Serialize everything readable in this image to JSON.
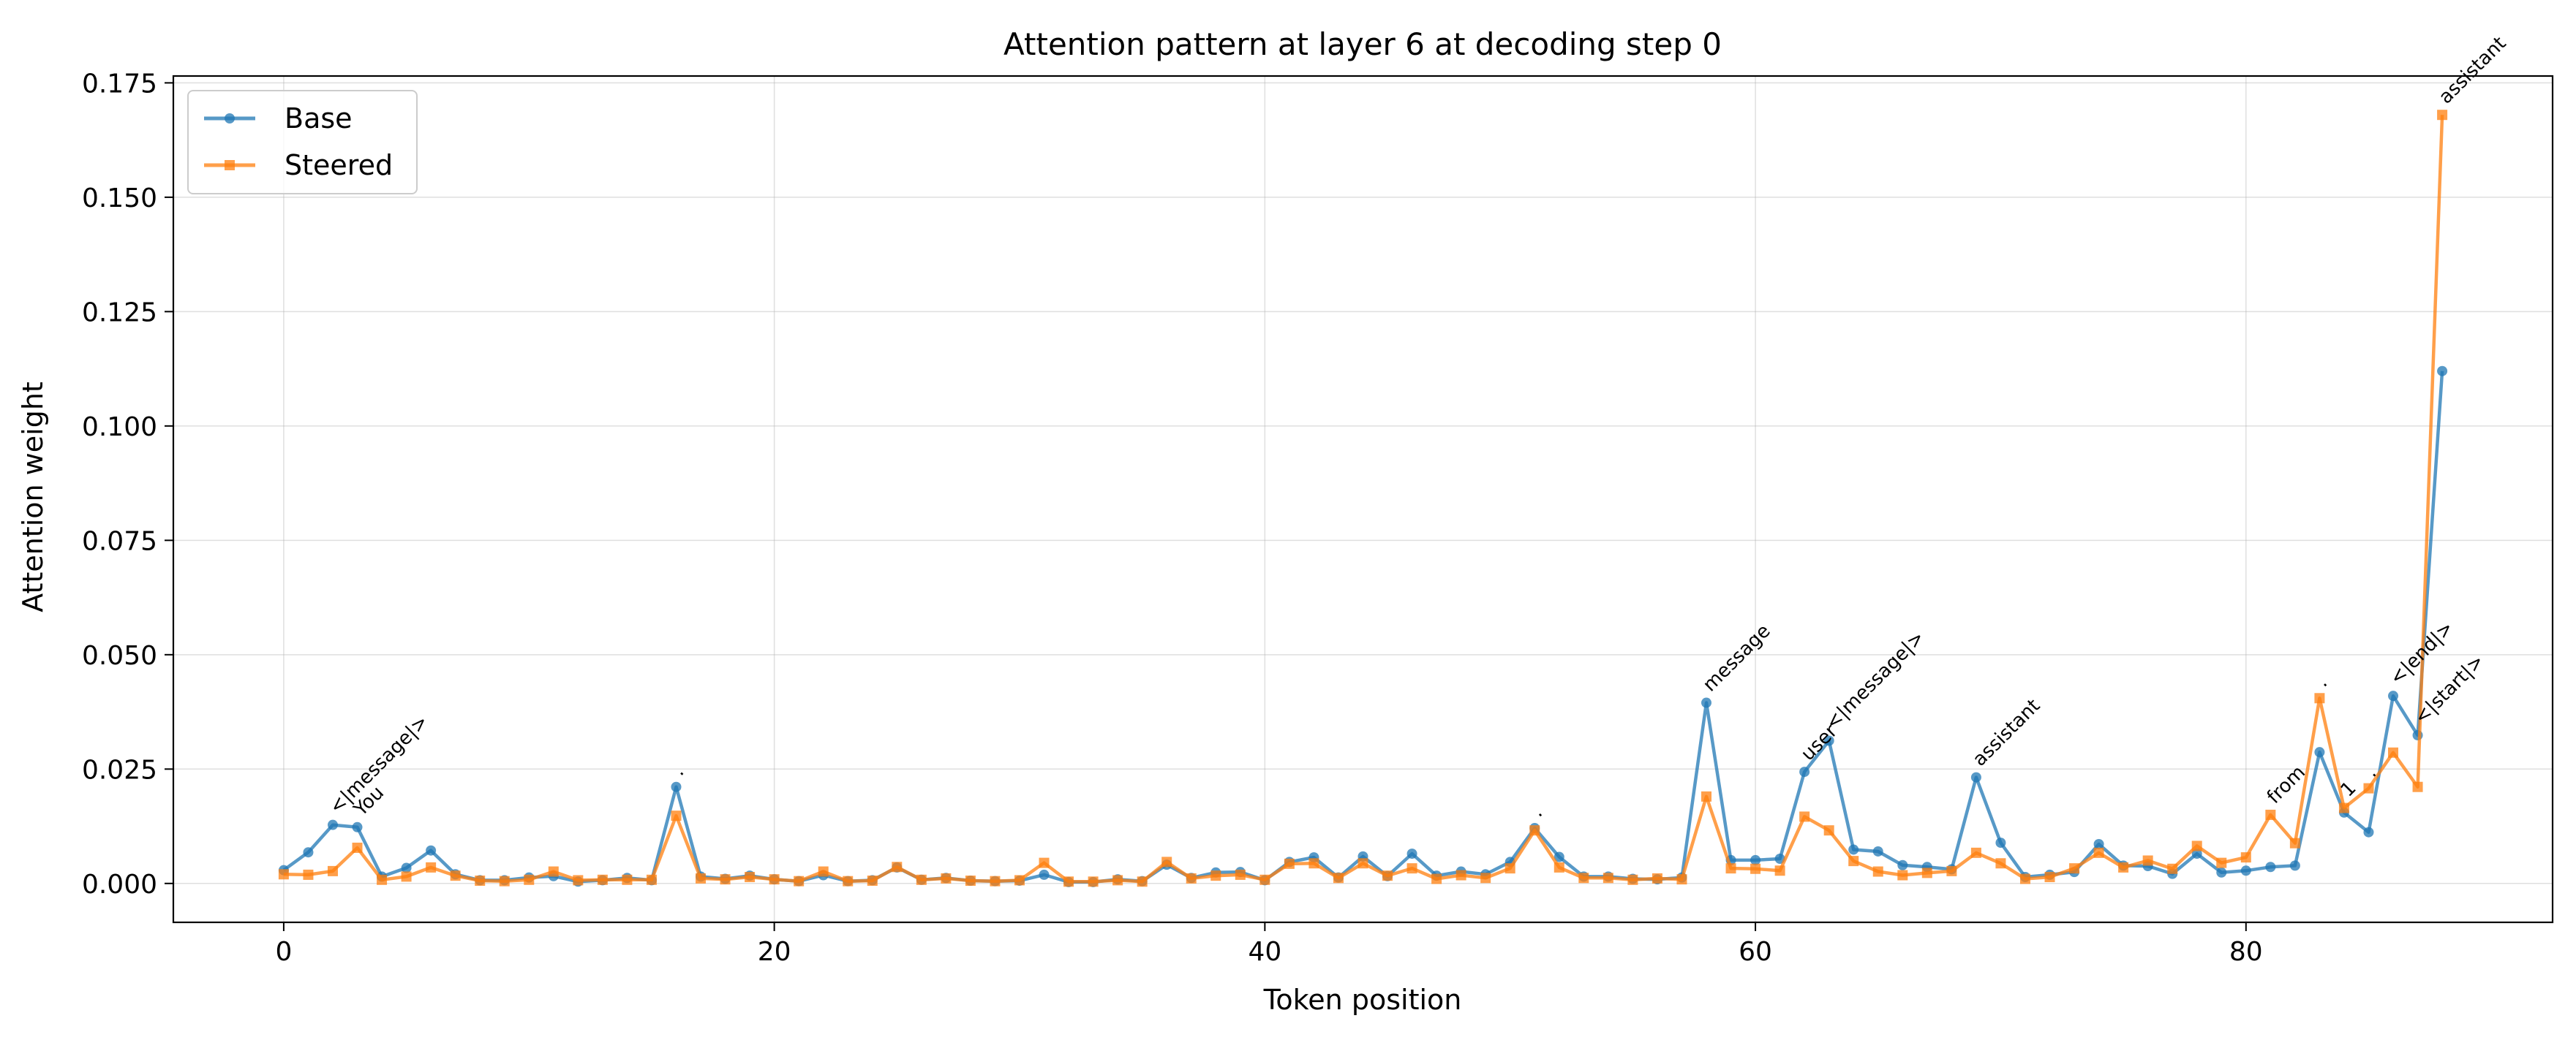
{
  "chart_data": {
    "type": "line",
    "title": "Attention pattern at layer 6 at decoding step 0",
    "xlabel": "Token position",
    "ylabel": "Attention weight",
    "xlim": [
      -4.5,
      92.5
    ],
    "ylim": [
      -0.0085,
      0.1765
    ],
    "xticks": [
      0,
      20,
      40,
      60,
      80
    ],
    "yticks": [
      0.0,
      0.025,
      0.05,
      0.075,
      0.1,
      0.125,
      0.15,
      0.175
    ],
    "ytick_labels": [
      "0.000",
      "0.025",
      "0.050",
      "0.075",
      "0.100",
      "0.125",
      "0.150",
      "0.175"
    ],
    "grid": true,
    "legend_position": "upper-left",
    "series": [
      {
        "name": "Base",
        "color": "#1f77b4",
        "marker": "circle",
        "values": [
          0.0029,
          0.0068,
          0.0128,
          0.0123,
          0.0015,
          0.0034,
          0.0072,
          0.002,
          0.0007,
          0.0007,
          0.0013,
          0.0016,
          0.0004,
          0.0007,
          0.0012,
          0.0007,
          0.0211,
          0.0015,
          0.001,
          0.0017,
          0.0009,
          0.0005,
          0.0018,
          0.0005,
          0.0007,
          0.0035,
          0.0008,
          0.0012,
          0.0006,
          0.0005,
          0.0006,
          0.0019,
          0.0003,
          0.0003,
          0.0009,
          0.0005,
          0.0041,
          0.0012,
          0.0024,
          0.0025,
          0.0007,
          0.0047,
          0.0057,
          0.0013,
          0.0059,
          0.0016,
          0.0065,
          0.0017,
          0.0026,
          0.002,
          0.0047,
          0.0121,
          0.0058,
          0.0015,
          0.0015,
          0.001,
          0.0009,
          0.0013,
          0.0395,
          0.0051,
          0.0051,
          0.0054,
          0.0244,
          0.0312,
          0.0074,
          0.007,
          0.004,
          0.0036,
          0.0031,
          0.0232,
          0.0089,
          0.0014,
          0.0019,
          0.0025,
          0.0086,
          0.0039,
          0.0038,
          0.0021,
          0.0065,
          0.0024,
          0.0028,
          0.0036,
          0.0039,
          0.0287,
          0.0155,
          0.0112,
          0.041,
          0.0324,
          0.112
        ]
      },
      {
        "name": "Steered",
        "color": "#ff7f0e",
        "marker": "square",
        "values": [
          0.002,
          0.0019,
          0.0027,
          0.0078,
          0.0008,
          0.0015,
          0.0035,
          0.0017,
          0.0006,
          0.0005,
          0.0008,
          0.0026,
          0.0007,
          0.0008,
          0.0008,
          0.0008,
          0.0148,
          0.0011,
          0.0009,
          0.0014,
          0.0009,
          0.0005,
          0.0026,
          0.0005,
          0.0006,
          0.0036,
          0.0008,
          0.0011,
          0.0006,
          0.0005,
          0.0007,
          0.0045,
          0.0004,
          0.0004,
          0.0007,
          0.0004,
          0.0047,
          0.0011,
          0.0017,
          0.0019,
          0.0008,
          0.0043,
          0.0044,
          0.0012,
          0.0044,
          0.0017,
          0.0033,
          0.001,
          0.0018,
          0.0012,
          0.0033,
          0.0116,
          0.0035,
          0.0012,
          0.0012,
          0.0008,
          0.0011,
          0.0009,
          0.019,
          0.0033,
          0.0032,
          0.0028,
          0.0146,
          0.0116,
          0.0049,
          0.0026,
          0.0018,
          0.0023,
          0.0027,
          0.0067,
          0.0044,
          0.001,
          0.0014,
          0.0033,
          0.0067,
          0.0035,
          0.005,
          0.0032,
          0.0082,
          0.0045,
          0.0057,
          0.015,
          0.0088,
          0.0405,
          0.0165,
          0.0208,
          0.0286,
          0.0211,
          0.168
        ]
      }
    ],
    "annotations": [
      {
        "text": "<|message|>",
        "x": 2,
        "y": 0.0128
      },
      {
        "text": "You",
        "x": 3,
        "y": 0.0123
      },
      {
        "text": ".",
        "x": 16,
        "y": 0.0211
      },
      {
        "text": ".",
        "x": 51,
        "y": 0.0121
      },
      {
        "text": "message",
        "x": 58,
        "y": 0.0395
      },
      {
        "text": "user",
        "x": 62,
        "y": 0.0244
      },
      {
        "text": "<|message|>",
        "x": 63,
        "y": 0.0312
      },
      {
        "text": "assistant",
        "x": 69,
        "y": 0.0232
      },
      {
        "text": "from",
        "x": 81,
        "y": 0.015
      },
      {
        "text": ".",
        "x": 83,
        "y": 0.0405
      },
      {
        "text": "1",
        "x": 84,
        "y": 0.0165
      },
      {
        "text": ".",
        "x": 85,
        "y": 0.0208
      },
      {
        "text": "<|end|>",
        "x": 86,
        "y": 0.041
      },
      {
        "text": "<|start|>",
        "x": 87,
        "y": 0.0324
      },
      {
        "text": "assistant",
        "x": 88,
        "y": 0.168
      }
    ]
  }
}
